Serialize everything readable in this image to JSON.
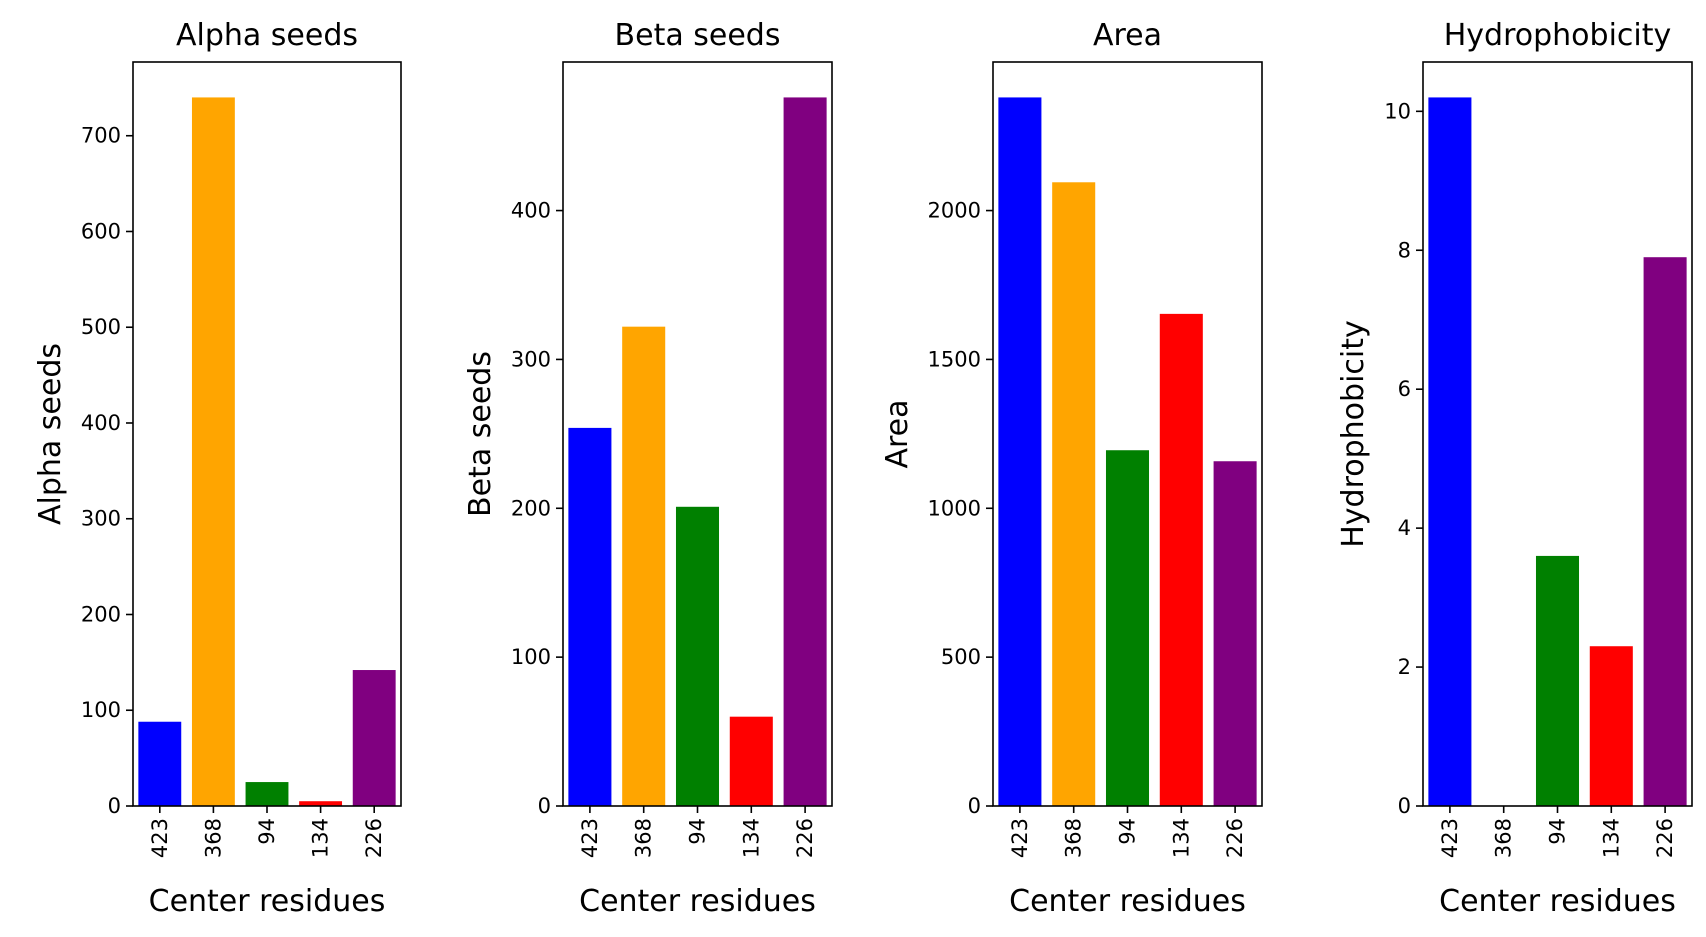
{
  "chart_data": [
    {
      "type": "bar",
      "title": "Alpha seeds",
      "xlabel": "Center residues",
      "ylabel": "Alpha seeds",
      "categories": [
        "423",
        "368",
        "94",
        "134",
        "226"
      ],
      "values": [
        88,
        740,
        25,
        5,
        142
      ],
      "colors": [
        "#0000ff",
        "#ffa500",
        "#008000",
        "#ff0000",
        "#800080"
      ],
      "ylim": [
        0,
        777
      ],
      "yticks": [
        0,
        100,
        200,
        300,
        400,
        500,
        600,
        700
      ],
      "ytick_labels": [
        "0",
        "100",
        "200",
        "300",
        "400",
        "500",
        "600",
        "700"
      ]
    },
    {
      "type": "bar",
      "title": "Beta seeds",
      "xlabel": "Center residues",
      "ylabel": "Beta seeds",
      "categories": [
        "423",
        "368",
        "94",
        "134",
        "226"
      ],
      "values": [
        254,
        322,
        201,
        60,
        476
      ],
      "colors": [
        "#0000ff",
        "#ffa500",
        "#008000",
        "#ff0000",
        "#800080"
      ],
      "ylim": [
        0,
        499.8
      ],
      "yticks": [
        0,
        100,
        200,
        300,
        400
      ],
      "ytick_labels": [
        "0",
        "100",
        "200",
        "300",
        "400"
      ]
    },
    {
      "type": "bar",
      "title": "Area",
      "xlabel": "Center residues",
      "ylabel": "Area",
      "categories": [
        "423",
        "368",
        "94",
        "134",
        "226"
      ],
      "values": [
        2380,
        2095,
        1195,
        1653,
        1158
      ],
      "colors": [
        "#0000ff",
        "#ffa500",
        "#008000",
        "#ff0000",
        "#800080"
      ],
      "ylim": [
        0,
        2499
      ],
      "yticks": [
        0,
        500,
        1000,
        1500,
        2000
      ],
      "ytick_labels": [
        "0",
        "500",
        "1000",
        "1500",
        "2000"
      ]
    },
    {
      "type": "bar",
      "title": "Hydrophobicity",
      "xlabel": "Center residues",
      "ylabel": "Hydrophobicity",
      "categories": [
        "423",
        "368",
        "94",
        "134",
        "226"
      ],
      "values": [
        10.2,
        0,
        3.6,
        2.3,
        7.9
      ],
      "colors": [
        "#0000ff",
        "#ffa500",
        "#008000",
        "#ff0000",
        "#800080"
      ],
      "ylim": [
        0,
        10.71
      ],
      "yticks": [
        0,
        2,
        4,
        6,
        8,
        10
      ],
      "ytick_labels": [
        "0",
        "2",
        "4",
        "6",
        "8",
        "10"
      ]
    }
  ]
}
